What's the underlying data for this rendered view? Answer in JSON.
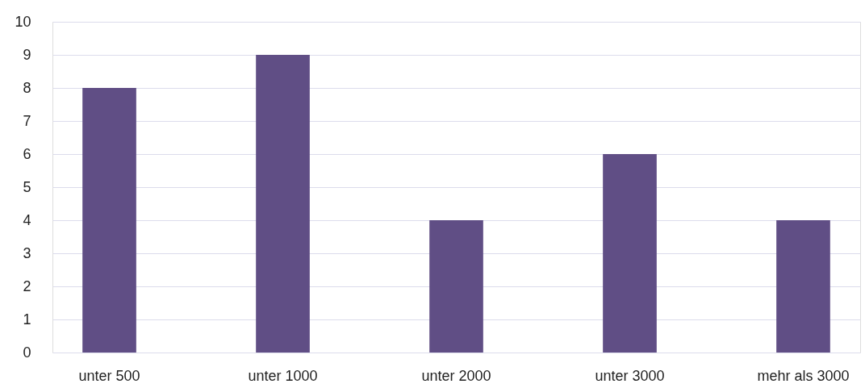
{
  "chart_data": {
    "type": "bar",
    "categories": [
      "unter 500",
      "unter 1000",
      "unter 2000",
      "unter 3000",
      "mehr als 3000"
    ],
    "values": [
      8,
      9,
      4,
      6,
      4
    ],
    "color": "#604e85",
    "ylim": [
      0,
      10
    ],
    "yticks": [
      0,
      1,
      2,
      3,
      4,
      5,
      6,
      7,
      8,
      9,
      10
    ],
    "grid": "y"
  }
}
